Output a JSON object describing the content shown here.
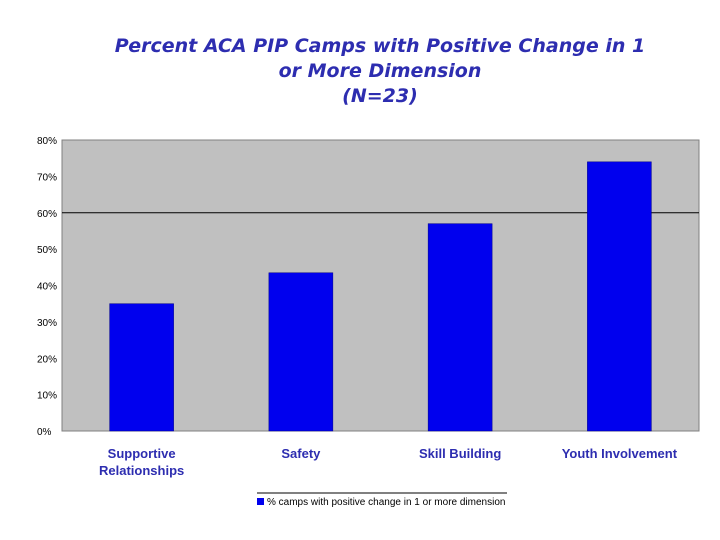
{
  "chart_data": {
    "type": "bar",
    "title_lines": [
      "Percent ACA PIP Camps with Positive Change in 1",
      "or More Dimension",
      "(N=23)"
    ],
    "categories": [
      [
        "Supportive",
        "Relationships"
      ],
      [
        "Safety"
      ],
      [
        "Skill Building"
      ],
      [
        "Youth Involvement"
      ]
    ],
    "series": [
      {
        "name": "% camps with positive change in 1 or more dimension",
        "values": [
          35,
          43.5,
          57,
          74
        ]
      }
    ],
    "ylim": [
      0,
      80
    ],
    "yticks": [
      "0%",
      "10%",
      "20%",
      "30%",
      "40%",
      "50%",
      "60%",
      "70%",
      "80%"
    ],
    "gridline_at": 60,
    "legend_position": "bottom",
    "colors": {
      "bar": "#0000ee",
      "plot_bg": "#c0c0c0",
      "title": "#2d2db0"
    }
  }
}
